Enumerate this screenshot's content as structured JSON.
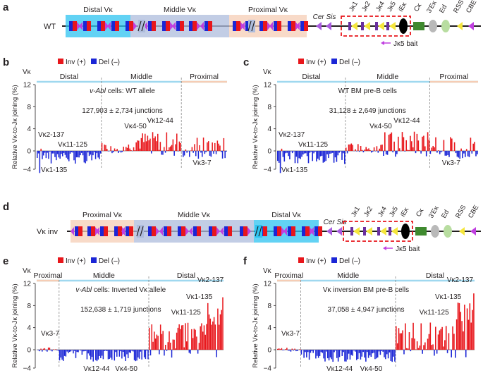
{
  "figure": {
    "panels": {
      "a": {
        "label": "a",
        "allele_label": "WT",
        "regions": [
          "Distal Vκ",
          "Middle Vκ",
          "Proximal Vκ"
        ],
        "elements": [
          "Cer Sis",
          "Jκ1",
          "Jκ2",
          "Jκ4",
          "Jκ5",
          "iEκ",
          "Cκ",
          "3'Eκ",
          "Ed",
          "RSS",
          "CBE"
        ],
        "bait_label": "Jκ5 bait"
      },
      "d": {
        "label": "d",
        "allele_label": "Vκ inv",
        "regions": [
          "Proximal Vκ",
          "Middle Vκ",
          "Distal Vκ"
        ],
        "elements": [
          "Cer Sis",
          "Jκ1",
          "Jκ2",
          "Jκ4",
          "Jκ5",
          "iEκ",
          "Cκ",
          "3'Eκ",
          "Ed",
          "RSS",
          "CBE"
        ],
        "bait_label": "Jκ5 bait"
      }
    },
    "colors": {
      "inv": "#e8161b",
      "del": "#1b26d6",
      "distal": "#2ec3f0",
      "middle": "#aebcdc",
      "proximal": "#f6cdb5",
      "rss": "#f5e63c",
      "cer": "#a95be0",
      "ck": "#3f8a2f",
      "ek3": "#b9b9b9",
      "ed": "#b8dda0",
      "axis_blue": "#9fd8ef",
      "bait": "#c040e0"
    }
  },
  "chart_data": [
    {
      "panel": "b",
      "type": "bar",
      "legend": [
        "Inv (+)",
        "Del (–)"
      ],
      "vk_label": "Vκ",
      "regions": [
        "Distal",
        "Middle",
        "Proximal"
      ],
      "ylabel": "Relative Vκ-to-Jκ joining (%)",
      "ylim": [
        -4,
        12
      ],
      "yticks": [
        "12",
        "8",
        "4",
        "0",
        "−4"
      ],
      "condition_prefix": "v-Abl",
      "condition": " cells: WT allele",
      "junctions": "127,903 ± 2,734 junctions",
      "annotations": [
        "Vκ2-137",
        "Vκ11-125",
        "Vκ1-135",
        "Vκ4-50",
        "Vκ12-44",
        "Vκ3-7"
      ]
    },
    {
      "panel": "c",
      "type": "bar",
      "legend": [
        "Inv (+)",
        "Del (–)"
      ],
      "vk_label": "Vκ",
      "regions": [
        "Distal",
        "Middle",
        "Proximal"
      ],
      "ylabel": "Relative Vκ-to-Jκ joining (%)",
      "ylim": [
        -4,
        12
      ],
      "yticks": [
        "12",
        "8",
        "4",
        "0",
        "−4"
      ],
      "condition_prefix": "",
      "condition": "WT BM pre-B cells",
      "junctions": "31,128 ± 2,649 junctions",
      "annotations": [
        "Vκ2-137",
        "Vκ11-125",
        "Vκ1-135",
        "Vκ4-50",
        "Vκ12-44",
        "Vκ3-7"
      ]
    },
    {
      "panel": "e",
      "type": "bar",
      "legend": [
        "Inv (+)",
        "Del (–)"
      ],
      "vk_label": "Vκ",
      "regions": [
        "Proximal",
        "Middle",
        "Distal"
      ],
      "ylabel": "Relative Vκ-to-Jκ joining (%)",
      "ylim": [
        -4,
        12
      ],
      "yticks": [
        "12",
        "8",
        "4",
        "0",
        "−4"
      ],
      "condition_prefix": "v-Abl",
      "condition": " cells: Inverted Vκ allele",
      "junctions": "152,638 ± 1,719 junctions",
      "annotations": [
        "Vκ2-137",
        "Vκ1-135",
        "Vκ11-125",
        "Vκ3-7",
        "Vκ12-44",
        "Vκ4-50"
      ]
    },
    {
      "panel": "f",
      "type": "bar",
      "legend": [
        "Inv (+)",
        "Del (–)"
      ],
      "vk_label": "Vκ",
      "regions": [
        "Proximal",
        "Middle",
        "Distal"
      ],
      "ylabel": "Relative Vκ-to-Jκ joining (%)",
      "ylim": [
        -4,
        12
      ],
      "yticks": [
        "12",
        "8",
        "4",
        "0",
        "−4"
      ],
      "condition_prefix": "",
      "condition": "Vκ inversion BM pre-B cells",
      "junctions": "37,058 ± 4,947 junctions",
      "annotations": [
        "Vκ2-137",
        "Vκ1-135",
        "Vκ11-125",
        "Vκ3-7",
        "Vκ12-44",
        "Vκ4-50"
      ]
    }
  ]
}
